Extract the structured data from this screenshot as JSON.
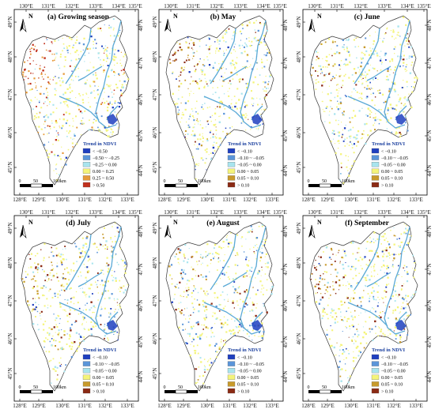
{
  "axes": {
    "top_lon": [
      "130°E",
      "131°E",
      "132°E",
      "133°E",
      "134°E",
      "135°E"
    ],
    "bottom_lon": [
      "128°E",
      "129°E",
      "130°E",
      "131°E",
      "132°E",
      "133°E"
    ],
    "left_lat": [
      "49°N",
      "48°N",
      "47°N",
      "46°N",
      "45°N"
    ],
    "right_lat": [
      "48°N",
      "47°N",
      "46°N",
      "45°N",
      "44°N"
    ]
  },
  "north_label": "N",
  "legend_title": "Trend in NDVI",
  "scale_labels": [
    "0",
    "50",
    "100km"
  ],
  "colors": {
    "c1": "#1f3fbf",
    "c2": "#5b95d9",
    "c3": "#a8e4ee",
    "c4": "#f4f47a",
    "c5": "#c89a2c",
    "c6": "#8b2a14",
    "river": "#5aa9d6",
    "outline": "#333333"
  },
  "panels": [
    {
      "title": "(a) Growing season",
      "legend": [
        "< −0.50",
        "−0.50 ~ −0.25",
        "−0.25 ~ 0.00",
        "0.00 ~ 0.25",
        "0.25 ~ 0.50",
        "> 0.50"
      ],
      "legend_colors": [
        "#1f3fbf",
        "#5b95d9",
        "#a8e4ee",
        "#f4f47a",
        "#e69a3a",
        "#c0301c"
      ],
      "hotspot": 0.9
    },
    {
      "title": "(b) May",
      "legend": [
        "< −0.10",
        "−0.10 ~ −0.05",
        "−0.05 ~ 0.00",
        "0.00 ~ 0.05",
        "0.05 ~ 0.10",
        "> 0.10"
      ],
      "legend_colors": [
        "#1f3fbf",
        "#5b95d9",
        "#a8e4ee",
        "#f4f47a",
        "#c89a2c",
        "#8b2a14"
      ],
      "hotspot": 0.7
    },
    {
      "title": "(c) June",
      "legend": [
        "< −0.10",
        "−0.10 ~ −0.05",
        "−0.05 ~ 0.00",
        "0.00 ~ 0.05",
        "0.05 ~ 0.10",
        "> 0.10"
      ],
      "legend_colors": [
        "#1f3fbf",
        "#5b95d9",
        "#a8e4ee",
        "#f4f47a",
        "#c89a2c",
        "#8b2a14"
      ],
      "hotspot": 0.3
    },
    {
      "title": "(d) July",
      "legend": [
        "< −0.10",
        "−0.10 ~ −0.05",
        "−0.05 ~ 0.00",
        "0.00 ~ 0.05",
        "0.05 ~ 0.10",
        "> 0.10"
      ],
      "legend_colors": [
        "#1f3fbf",
        "#5b95d9",
        "#a8e4ee",
        "#f4f47a",
        "#c89a2c",
        "#8b2a14"
      ],
      "hotspot": 0.2
    },
    {
      "title": "(e) August",
      "legend": [
        "< −0.10",
        "−0.10 ~ −0.05",
        "−0.05 ~ 0.00",
        "0.00 ~ 0.05",
        "0.05 ~ 0.10",
        "> 0.10"
      ],
      "legend_colors": [
        "#1f3fbf",
        "#5b95d9",
        "#a8e4ee",
        "#f4f47a",
        "#c89a2c",
        "#8b2a14"
      ],
      "hotspot": 0.25
    },
    {
      "title": "(f) September",
      "legend": [
        "< −0.10",
        "−0.10 ~ −0.05",
        "−0.05 ~ 0.00",
        "0.00 ~ 0.05",
        "0.05 ~ 0.10",
        "> 0.10"
      ],
      "legend_colors": [
        "#1f3fbf",
        "#5b95d9",
        "#a8e4ee",
        "#f4f47a",
        "#c89a2c",
        "#8b2a14"
      ],
      "hotspot": 0.75
    }
  ]
}
